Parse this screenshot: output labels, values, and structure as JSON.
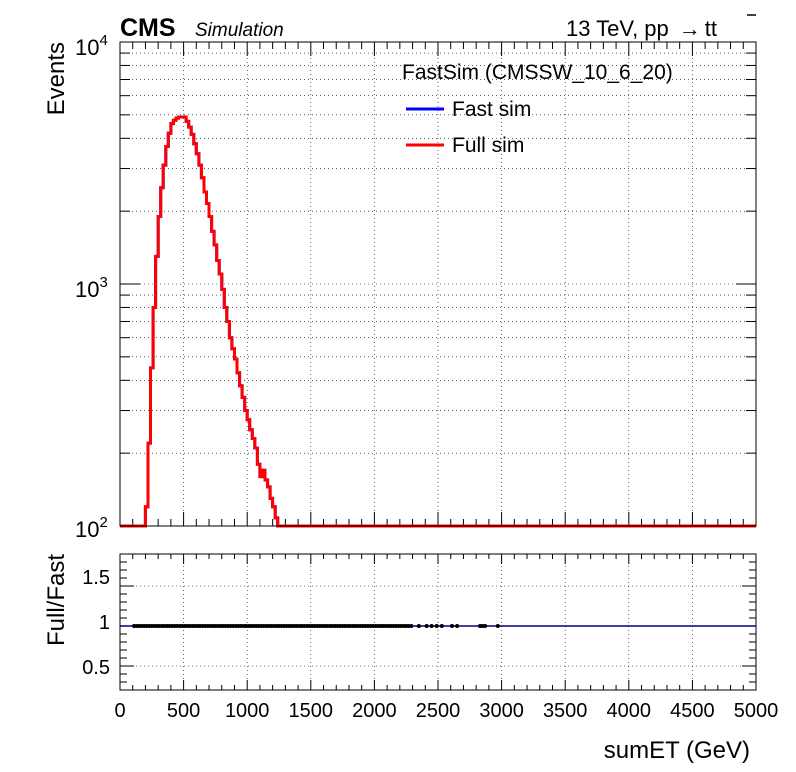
{
  "header": {
    "cms": "CMS",
    "simulation": "Simulation",
    "energy_text": "13 TeV, pp",
    "process_arrow": "→",
    "process_t1": "t",
    "process_t2": "t"
  },
  "legend": {
    "title": "FastSim (CMSSW_10_6_20)",
    "entries": [
      {
        "label": "Fast sim",
        "color": "#0000ff"
      },
      {
        "label": "Full sim",
        "color": "#ff0000"
      }
    ]
  },
  "chart_data": [
    {
      "type": "line",
      "panel": "main",
      "ylabel": "Events",
      "xlim": [
        0,
        5000
      ],
      "ylim": [
        100,
        10000
      ],
      "yscale": "log",
      "grid": true,
      "legend_position": "top-right",
      "y_ticks": [
        {
          "base": "10",
          "exp": "2"
        },
        {
          "base": "10",
          "exp": "3"
        },
        {
          "base": "10",
          "exp": "4"
        }
      ],
      "series": [
        {
          "name": "Fast sim",
          "color": "#0000ff",
          "x": [
            0,
            200,
            220,
            240,
            260,
            280,
            300,
            320,
            340,
            360,
            380,
            400,
            420,
            440,
            460,
            480,
            500,
            520,
            540,
            560,
            580,
            600,
            620,
            640,
            660,
            680,
            700,
            720,
            740,
            760,
            780,
            800,
            820,
            840,
            860,
            880,
            900,
            920,
            940,
            960,
            980,
            1000,
            1020,
            1040,
            1060,
            1080,
            1100,
            1120,
            1140,
            1160,
            1180,
            1200,
            1220,
            1240,
            1260,
            5000
          ],
          "y": [
            100,
            120,
            220,
            450,
            800,
            1300,
            1900,
            2500,
            3100,
            3700,
            4200,
            4600,
            4750,
            4850,
            4900,
            4900,
            4900,
            4700,
            4450,
            4150,
            3800,
            3450,
            3100,
            2750,
            2400,
            2150,
            1900,
            1650,
            1450,
            1250,
            1100,
            950,
            800,
            700,
            600,
            540,
            490,
            430,
            380,
            340,
            300,
            275,
            250,
            230,
            210,
            180,
            160,
            170,
            155,
            145,
            130,
            120,
            108,
            100,
            100,
            100
          ]
        },
        {
          "name": "Full sim",
          "color": "#ff0000",
          "x": [
            0,
            200,
            220,
            240,
            260,
            280,
            300,
            320,
            340,
            360,
            380,
            400,
            420,
            440,
            460,
            480,
            500,
            520,
            540,
            560,
            580,
            600,
            620,
            640,
            660,
            680,
            700,
            720,
            740,
            760,
            780,
            800,
            820,
            840,
            860,
            880,
            900,
            920,
            940,
            960,
            980,
            1000,
            1020,
            1040,
            1060,
            1080,
            1100,
            1120,
            1140,
            1160,
            1180,
            1200,
            1220,
            1240,
            1260,
            5000
          ],
          "y": [
            100,
            120,
            220,
            450,
            800,
            1300,
            1900,
            2500,
            3100,
            3700,
            4200,
            4600,
            4750,
            4850,
            4900,
            4900,
            4900,
            4700,
            4450,
            4150,
            3800,
            3450,
            3100,
            2750,
            2400,
            2150,
            1900,
            1650,
            1450,
            1250,
            1100,
            950,
            800,
            700,
            600,
            540,
            490,
            430,
            380,
            340,
            300,
            275,
            250,
            230,
            210,
            180,
            160,
            170,
            155,
            145,
            130,
            120,
            108,
            100,
            100,
            100
          ]
        }
      ]
    },
    {
      "type": "scatter",
      "panel": "ratio",
      "xlabel": "sumET (GeV)",
      "ylabel": "Full/Fast",
      "xlim": [
        0,
        5000
      ],
      "ylim": [
        0.2,
        1.9
      ],
      "grid": true,
      "x_ticks": [
        "0",
        "500",
        "1000",
        "1500",
        "2000",
        "2500",
        "3000",
        "3500",
        "4000",
        "4500",
        "5000"
      ],
      "y_ticks": [
        "0.5",
        "1",
        "1.5"
      ],
      "reference_line": {
        "y": 1,
        "color": "#000080"
      },
      "points": {
        "x": [
          110,
          130,
          150,
          170,
          190,
          210,
          230,
          250,
          270,
          290,
          310,
          330,
          350,
          370,
          390,
          410,
          430,
          450,
          470,
          490,
          510,
          530,
          550,
          570,
          590,
          610,
          630,
          650,
          670,
          690,
          710,
          730,
          750,
          770,
          790,
          810,
          830,
          850,
          870,
          890,
          910,
          930,
          950,
          970,
          990,
          1010,
          1030,
          1050,
          1070,
          1090,
          1110,
          1130,
          1150,
          1170,
          1190,
          1210,
          1230,
          1250,
          1270,
          1290,
          1310,
          1330,
          1350,
          1370,
          1390,
          1410,
          1430,
          1450,
          1470,
          1490,
          1510,
          1530,
          1550,
          1570,
          1590,
          1610,
          1630,
          1650,
          1670,
          1690,
          1710,
          1730,
          1750,
          1770,
          1790,
          1810,
          1830,
          1850,
          1870,
          1890,
          1910,
          1930,
          1950,
          1970,
          1990,
          2010,
          2030,
          2050,
          2070,
          2090,
          2110,
          2130,
          2150,
          2170,
          2190,
          2210,
          2230,
          2250,
          2270,
          2290,
          2350,
          2410,
          2450,
          2490,
          2530,
          2610,
          2650,
          2830,
          2850,
          2870,
          2970
        ],
        "y": [
          1,
          1,
          1,
          1,
          1,
          1,
          1,
          1,
          1,
          1,
          1,
          1,
          1,
          1,
          1,
          1,
          1,
          1,
          1,
          1,
          1,
          1,
          1,
          1,
          1,
          1,
          1,
          1,
          1,
          1,
          1,
          1,
          1,
          1,
          1,
          1,
          1,
          1,
          1,
          1,
          1,
          1,
          1,
          1,
          1,
          1,
          1,
          1,
          1,
          1,
          1,
          1,
          1,
          1,
          1,
          1,
          1,
          1,
          1,
          1,
          1,
          1,
          1,
          1,
          1,
          1,
          1,
          1,
          1,
          1,
          1,
          1,
          1,
          1,
          1,
          1,
          1,
          1,
          1,
          1,
          1,
          1,
          1,
          1,
          1,
          1,
          1,
          1,
          1,
          1,
          1,
          1,
          1,
          1,
          1,
          1,
          1,
          1,
          1,
          1,
          1,
          1,
          1,
          1,
          1,
          1,
          1,
          1,
          1,
          1,
          1,
          1,
          1,
          1,
          1,
          1,
          1,
          1,
          1,
          1,
          1
        ]
      }
    }
  ]
}
